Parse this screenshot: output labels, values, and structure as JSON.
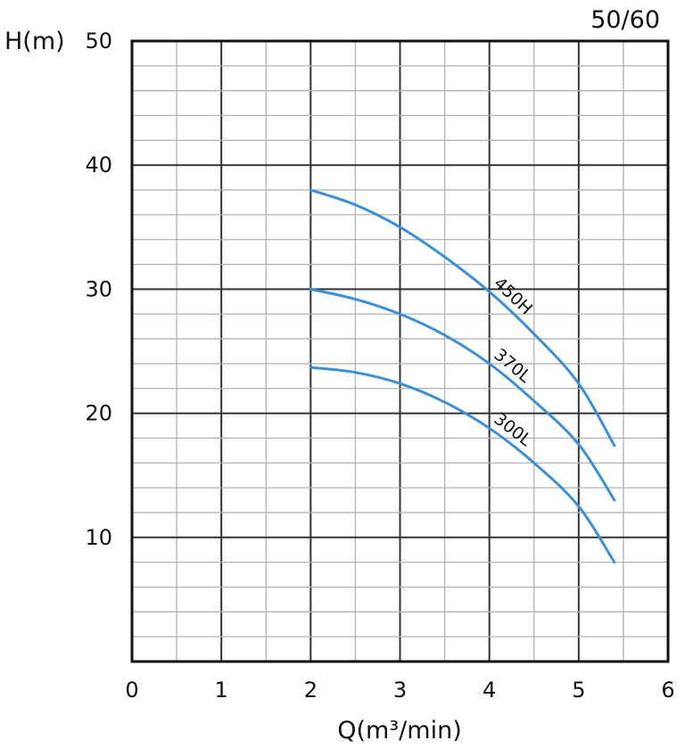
{
  "chart_data": {
    "type": "line",
    "corner_label": "50/60",
    "ylabel": "H(m)",
    "xlabel": "Q(m³/min)",
    "xlim": [
      0,
      6
    ],
    "ylim": [
      0,
      50
    ],
    "xticks": [
      "0",
      "1",
      "2",
      "3",
      "4",
      "5",
      "6"
    ],
    "yticks": [
      "10",
      "20",
      "30",
      "40",
      "50"
    ],
    "grid": true,
    "line_color": "#3a8fd6",
    "series": [
      {
        "name": "450H",
        "x": [
          2.0,
          2.5,
          3.0,
          3.5,
          4.0,
          4.5,
          5.0,
          5.4
        ],
        "y": [
          38.0,
          36.8,
          35.0,
          32.6,
          29.8,
          26.4,
          22.4,
          17.4
        ]
      },
      {
        "name": "370L",
        "x": [
          2.0,
          2.5,
          3.0,
          3.5,
          4.0,
          4.5,
          5.0,
          5.4
        ],
        "y": [
          30.0,
          29.2,
          28.0,
          26.3,
          24.0,
          21.0,
          17.5,
          13.0
        ]
      },
      {
        "name": "300L",
        "x": [
          2.0,
          2.5,
          3.0,
          3.5,
          4.0,
          4.5,
          5.0,
          5.4
        ],
        "y": [
          23.7,
          23.3,
          22.4,
          20.9,
          18.8,
          16.0,
          12.5,
          8.0
        ]
      }
    ]
  }
}
